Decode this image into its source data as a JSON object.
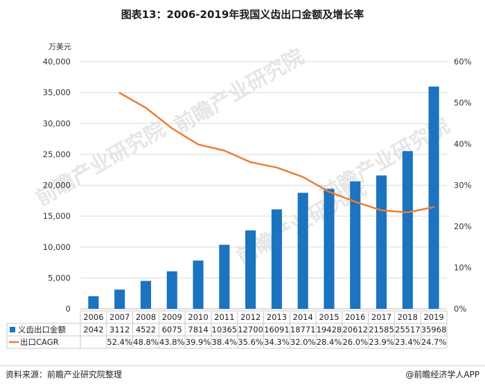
{
  "title": "图表13：2006-2019年我国义齿出口金额及增长率",
  "unit_label": "万美元",
  "footer": {
    "source": "资料来源：前瞻产业研究院整理",
    "brand": "@前瞻经济学人APP"
  },
  "watermark": "前瞻产业研究院",
  "colors": {
    "bar": "#1c73c0",
    "line": "#ed7d31"
  },
  "chart_data": {
    "type": "bar",
    "categories": [
      "2006",
      "2007",
      "2008",
      "2009",
      "2010",
      "2011",
      "2012",
      "2013",
      "2014",
      "2015",
      "2016",
      "2017",
      "2018",
      "2019"
    ],
    "ylim": [
      0,
      40000
    ],
    "y_ticks": [
      "0",
      "5,000",
      "10,000",
      "15,000",
      "20,000",
      "25,000",
      "30,000",
      "35,000",
      "40,000"
    ],
    "y2lim": [
      0,
      60
    ],
    "y2_ticks": [
      "0%",
      "10%",
      "20%",
      "30%",
      "40%",
      "50%",
      "60%"
    ],
    "series": [
      {
        "name": "义齿出口金额",
        "type": "bar",
        "axis": "left",
        "values": [
          2042,
          3112,
          4522,
          6075,
          7814,
          10365,
          12700,
          16091,
          18771,
          19428,
          20612,
          21585,
          25517,
          35968
        ],
        "labels": [
          "2042",
          "3112",
          "4522",
          "6075",
          "7814",
          "10365",
          "12700",
          "16091",
          "18771",
          "19428",
          "20612",
          "21585",
          "25517",
          "35968"
        ]
      },
      {
        "name": "出口CAGR",
        "type": "line",
        "axis": "right",
        "values": [
          null,
          52.4,
          48.8,
          43.8,
          39.9,
          38.4,
          35.6,
          34.3,
          32.0,
          28.4,
          26.0,
          23.9,
          23.4,
          24.7
        ],
        "labels": [
          "",
          "52.4%",
          "48.8%",
          "43.8%",
          "39.9%",
          "38.4%",
          "35.6%",
          "34.3%",
          "32.0%",
          "28.4%",
          "26.0%",
          "23.9%",
          "23.4%",
          "24.7%"
        ]
      }
    ]
  }
}
